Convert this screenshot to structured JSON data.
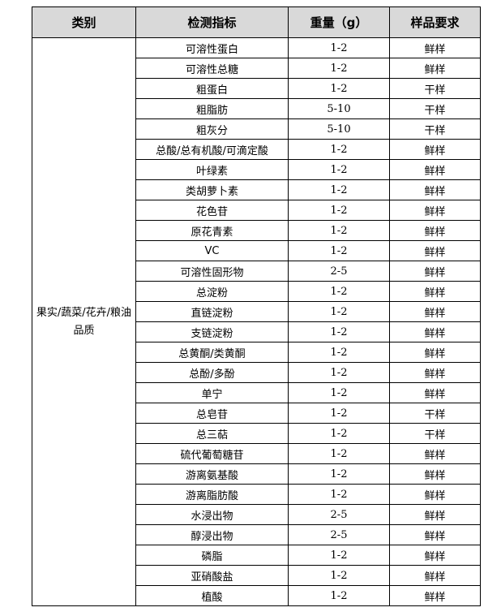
{
  "headers": [
    "类别",
    "检测指标",
    "重量（g）",
    "样品要求"
  ],
  "category": "果实/蔬菜/花卉/粮油品质",
  "rows": [
    {
      "indicator": "可溶性蛋白",
      "weight": "1-2",
      "requirement": "鲜样"
    },
    {
      "indicator": "可溶性总糖",
      "weight": "1-2",
      "requirement": "鲜样"
    },
    {
      "indicator": "粗蛋白",
      "weight": "1-2",
      "requirement": "干样"
    },
    {
      "indicator": "粗脂肪",
      "weight": "5-10",
      "requirement": "干样"
    },
    {
      "indicator": "粗灰分",
      "weight": "5-10",
      "requirement": "干样"
    },
    {
      "indicator": "总酸/总有机酸/可滴定酸",
      "weight": "1-2",
      "requirement": "鲜样"
    },
    {
      "indicator": "叶绿素",
      "weight": "1-2",
      "requirement": "鲜样"
    },
    {
      "indicator": "类胡萝卜素",
      "weight": "1-2",
      "requirement": "鲜样"
    },
    {
      "indicator": "花色苷",
      "weight": "1-2",
      "requirement": "鲜样"
    },
    {
      "indicator": "原花青素",
      "weight": "1-2",
      "requirement": "鲜样"
    },
    {
      "indicator": "VC",
      "weight": "1-2",
      "requirement": "鲜样"
    },
    {
      "indicator": "可溶性固形物",
      "weight": "2-5",
      "requirement": "鲜样"
    },
    {
      "indicator": "总淀粉",
      "weight": "1-2",
      "requirement": "鲜样"
    },
    {
      "indicator": "直链淀粉",
      "weight": "1-2",
      "requirement": "鲜样"
    },
    {
      "indicator": "支链淀粉",
      "weight": "1-2",
      "requirement": "鲜样"
    },
    {
      "indicator": "总黄酮/类黄酮",
      "weight": "1-2",
      "requirement": "鲜样"
    },
    {
      "indicator": "总酚/多酚",
      "weight": "1-2",
      "requirement": "鲜样"
    },
    {
      "indicator": "单宁",
      "weight": "1-2",
      "requirement": "鲜样"
    },
    {
      "indicator": "总皂苷",
      "weight": "1-2",
      "requirement": "干样"
    },
    {
      "indicator": "总三萜",
      "weight": "1-2",
      "requirement": "干样"
    },
    {
      "indicator": "硫代葡萄糖苷",
      "weight": "1-2",
      "requirement": "鲜样"
    },
    {
      "indicator": "游离氨基酸",
      "weight": "1-2",
      "requirement": "鲜样"
    },
    {
      "indicator": "游离脂肪酸",
      "weight": "1-2",
      "requirement": "鲜样"
    },
    {
      "indicator": "水浸出物",
      "weight": "2-5",
      "requirement": "鲜样"
    },
    {
      "indicator": "醇浸出物",
      "weight": "2-5",
      "requirement": "鲜样"
    },
    {
      "indicator": "磷脂",
      "weight": "1-2",
      "requirement": "鲜样"
    },
    {
      "indicator": "亚硝酸盐",
      "weight": "1-2",
      "requirement": "鲜样"
    },
    {
      "indicator": "植酸",
      "weight": "1-2",
      "requirement": "鲜样"
    }
  ]
}
